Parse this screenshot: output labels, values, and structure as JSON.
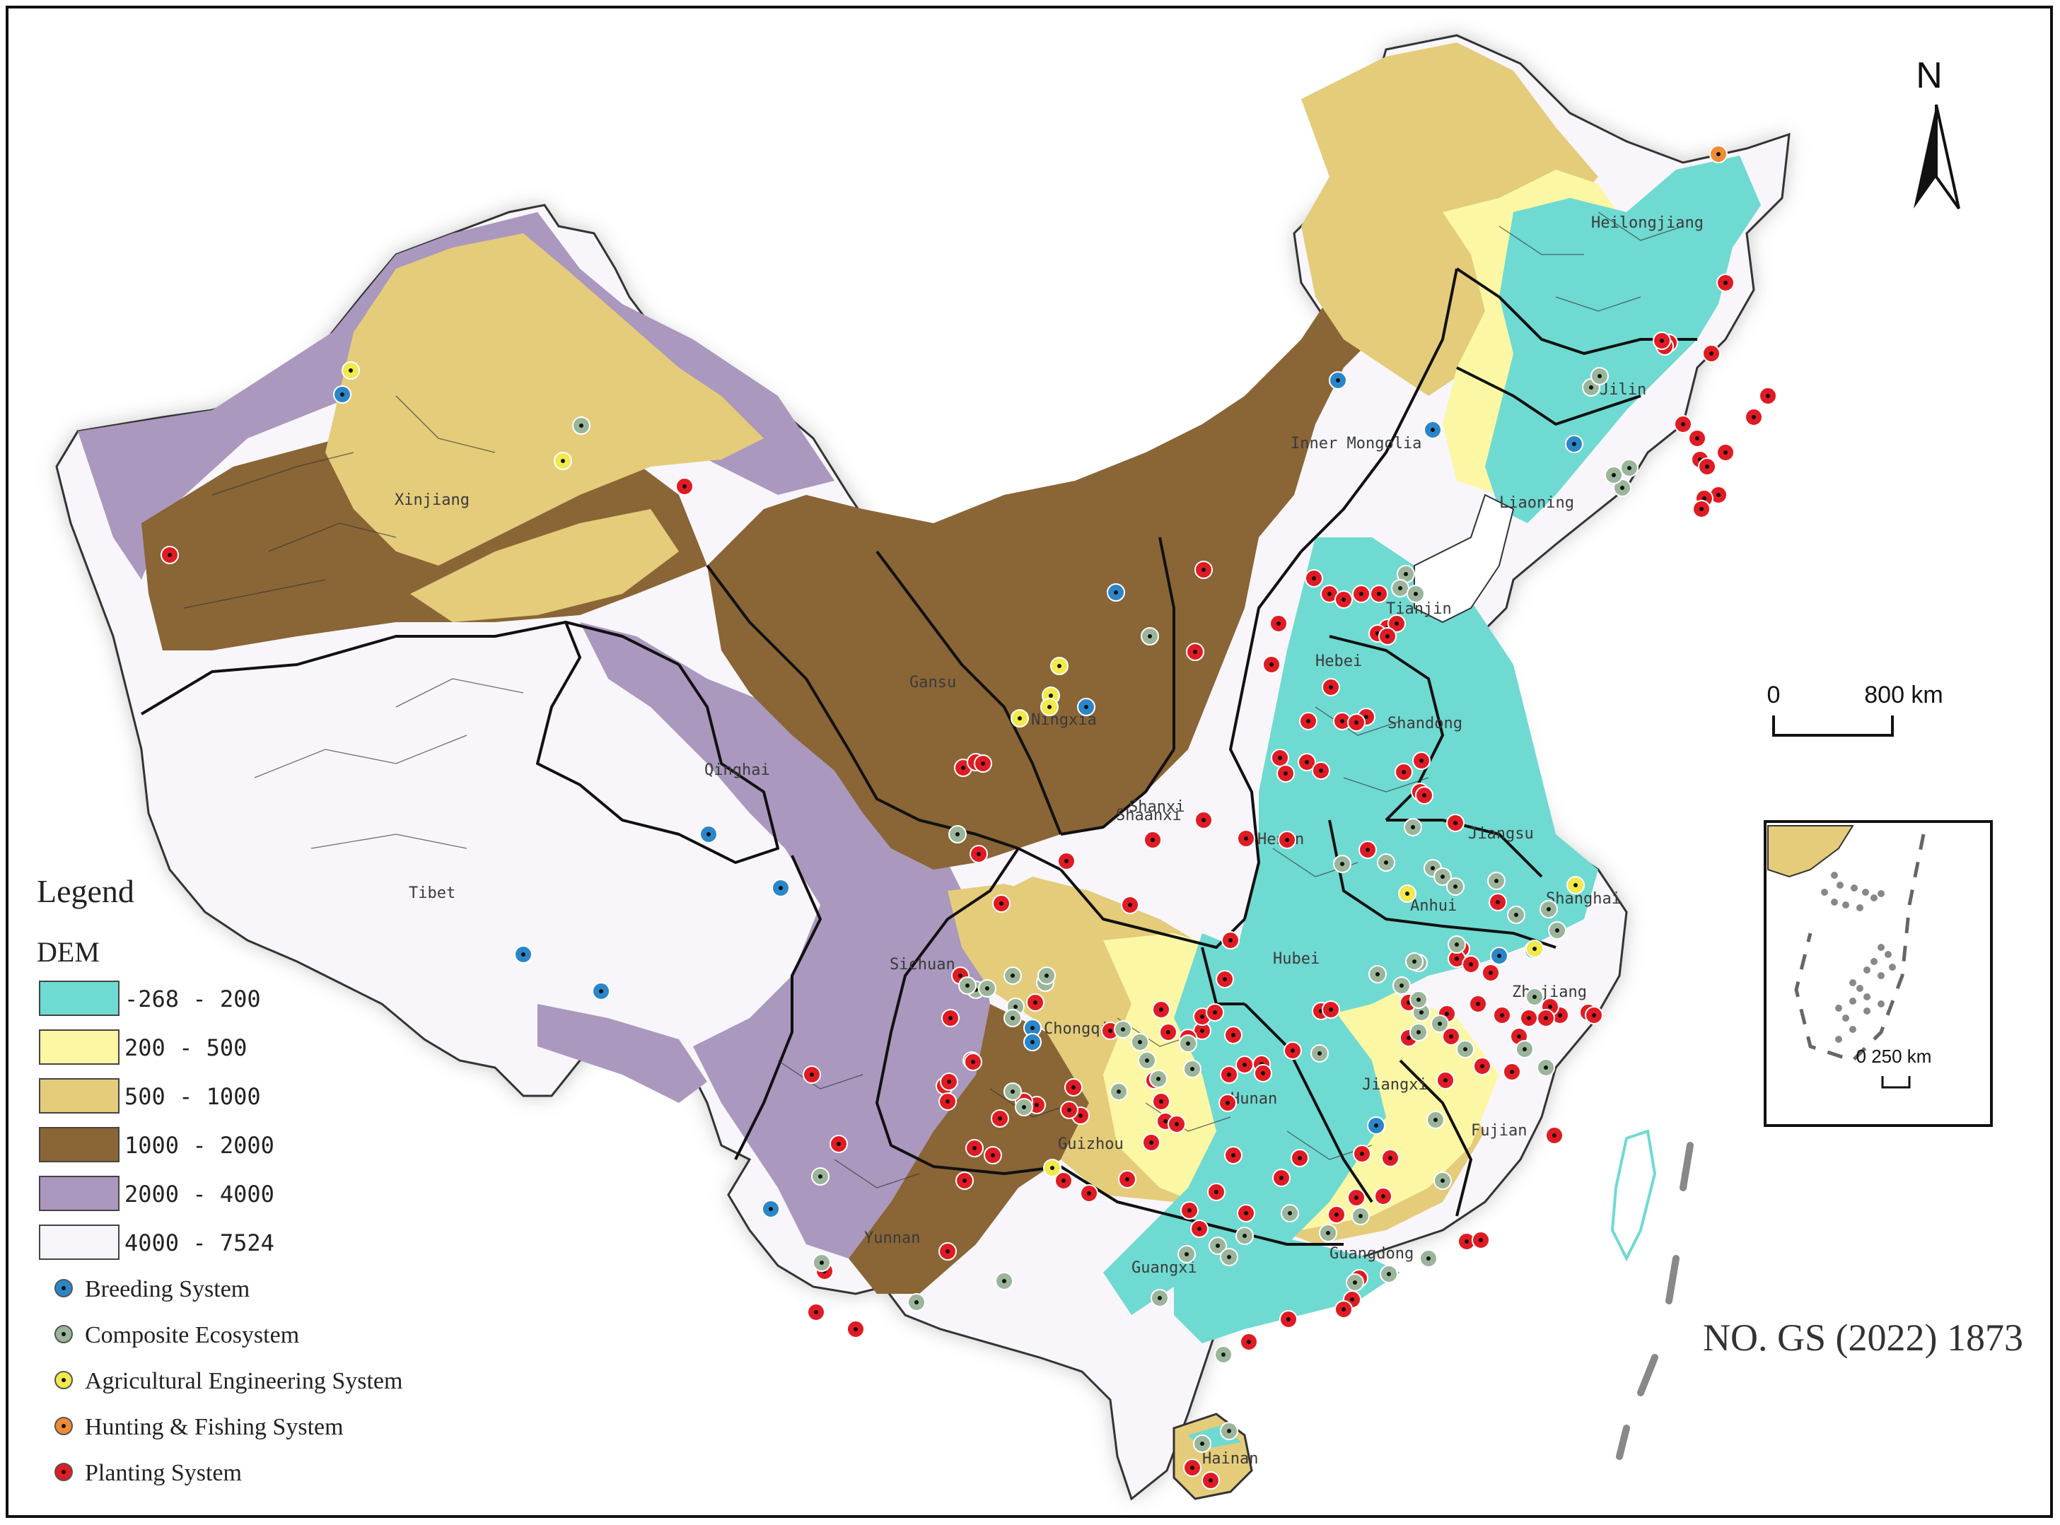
{
  "north_label": "N",
  "scale_bar": {
    "start": "0",
    "end": "800 km"
  },
  "inset_scale": "0 250 km",
  "approval_number": "NO. GS (2022) 1873",
  "legend": {
    "title": "Legend",
    "dem_title": "DEM",
    "dem_classes": [
      {
        "range": "-268 - 200",
        "color": "#6fdad2"
      },
      {
        "range": "200 - 500",
        "color": "#fcf7a4"
      },
      {
        "range": "500 - 1000",
        "color": "#e4cc7a"
      },
      {
        "range": "1000 - 2000",
        "color": "#8a6536"
      },
      {
        "range": "2000 - 4000",
        "color": "#aa98be"
      },
      {
        "range": "4000 - 7524",
        "color": "#f8f6fb"
      }
    ],
    "systems": [
      {
        "label": "Breeding System",
        "color": "#2b86c9"
      },
      {
        "label": "Composite Ecosystem",
        "color": "#9bb59a"
      },
      {
        "label": "Agricultural Engineering System",
        "color": "#f2e94a"
      },
      {
        "label": "Hunting & Fishing System",
        "color": "#f08b32"
      },
      {
        "label": "Planting System",
        "color": "#e01b23"
      }
    ]
  },
  "province_labels": [
    "Heilongjiang",
    "Jilin",
    "Liaoning",
    "Inner Mongolia",
    "Xinjiang",
    "Tibet",
    "Qinghai",
    "Gansu",
    "Ningxia",
    "Shaanxi",
    "Shanxi",
    "Hebei",
    "Tianjin",
    "Shandong",
    "Henan",
    "Jiangsu",
    "Anhui",
    "Shanghai",
    "Hubei",
    "Zhejiang",
    "Sichuan",
    "Chongqing",
    "Hunan",
    "Jiangxi",
    "Fujian",
    "Guizhou",
    "Yunnan",
    "Guangxi",
    "Guangdong",
    "Hainan"
  ]
}
